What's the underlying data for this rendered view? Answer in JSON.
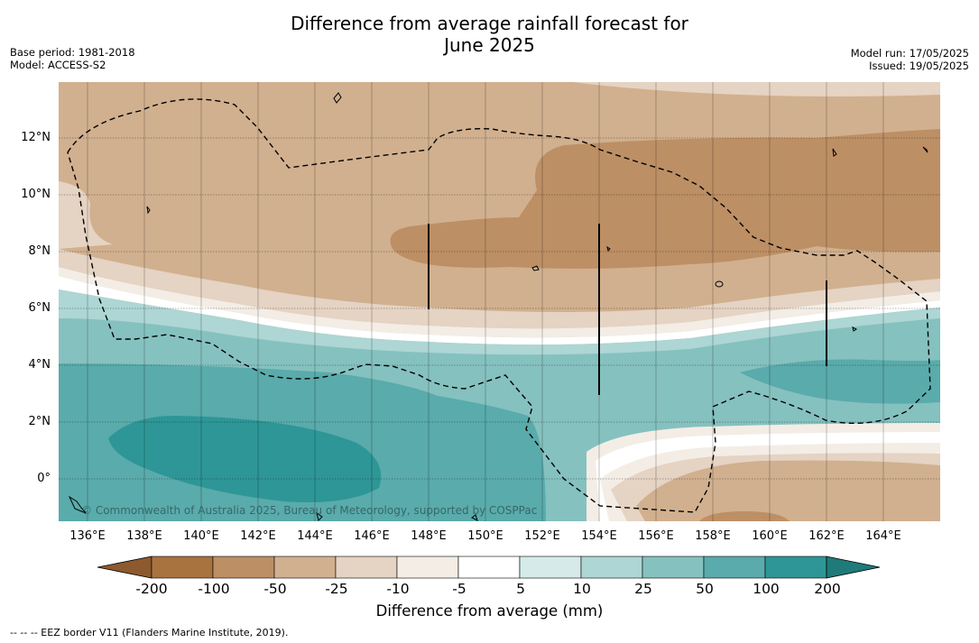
{
  "title_line1": "Difference from average rainfall forecast for",
  "title_line2": "June 2025",
  "meta_left": {
    "base_period": "Base period: 1981-2018",
    "model": "Model: ACCESS-S2"
  },
  "meta_right": {
    "model_run": "Model run: 17/05/2025",
    "issued": "Issued: 19/05/2025"
  },
  "lat_labels": [
    "12°N",
    "10°N",
    "8°N",
    "6°N",
    "4°N",
    "2°N",
    "0°"
  ],
  "lon_labels": [
    "136°E",
    "138°E",
    "140°E",
    "142°E",
    "144°E",
    "146°E",
    "148°E",
    "150°E",
    "152°E",
    "154°E",
    "156°E",
    "158°E",
    "160°E",
    "162°E",
    "164°E"
  ],
  "copyright": "© Commonwealth of Australia 2025, Bureau of Meteorology, supported by COSPPac",
  "colorbar": {
    "ticks": [
      "-200",
      "-100",
      "-50",
      "-25",
      "-10",
      "-5",
      "5",
      "10",
      "25",
      "50",
      "100",
      "200"
    ],
    "colors": [
      "#a8733f",
      "#bd8f65",
      "#d1b08f",
      "#e5d3c3",
      "#f3ede6",
      "#ffffff",
      "#d6ebe9",
      "#add6d4",
      "#85c1bf",
      "#5aabab",
      "#2e9696"
    ],
    "under_color": "#8c5a2e",
    "over_color": "#1f7a7a",
    "label": "Difference from average (mm)"
  },
  "footnote": "--  --  -- EEZ border V11 (Flanders Marine Institute, 2019)."
}
